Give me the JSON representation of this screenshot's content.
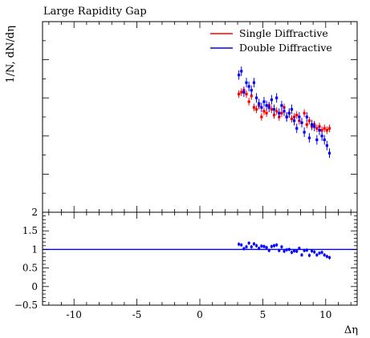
{
  "chart_data": {
    "type": "scatter",
    "title": "Large Rapidity Gap",
    "xlabel": "Δη",
    "ylabel": "1/N, dN/dη",
    "xlim": [
      -12.5,
      12.5
    ],
    "x_ticks": [
      -10,
      -5,
      0,
      5,
      10
    ],
    "x_tick_labels": [
      "-10",
      "-5",
      "0",
      "5",
      "10"
    ],
    "main_y_tick_labels_shown": false,
    "legend_position": "top-right",
    "series": [
      {
        "name": "Single Diffractive",
        "color": "#ff0000",
        "x": [
          3.1,
          3.3,
          3.5,
          3.7,
          3.9,
          4.1,
          4.3,
          4.5,
          4.7,
          4.9,
          5.1,
          5.3,
          5.5,
          5.7,
          5.9,
          6.1,
          6.3,
          6.5,
          6.7,
          6.9,
          7.1,
          7.3,
          7.5,
          7.7,
          7.9,
          8.1,
          8.3,
          8.5,
          8.7,
          8.9,
          9.1,
          9.3,
          9.5,
          9.7,
          9.9,
          10.1,
          10.3
        ],
        "y": [
          0.62,
          0.63,
          0.64,
          0.62,
          0.58,
          0.61,
          0.55,
          0.54,
          0.56,
          0.5,
          0.53,
          0.52,
          0.56,
          0.54,
          0.51,
          0.53,
          0.5,
          0.52,
          0.55,
          0.5,
          0.52,
          0.49,
          0.5,
          0.51,
          0.48,
          0.47,
          0.52,
          0.46,
          0.48,
          0.45,
          0.46,
          0.44,
          0.45,
          0.43,
          0.44,
          0.43,
          0.44
        ],
        "err": [
          0.02,
          0.02,
          0.02,
          0.02,
          0.02,
          0.02,
          0.02,
          0.02,
          0.02,
          0.02,
          0.02,
          0.02,
          0.02,
          0.02,
          0.02,
          0.02,
          0.02,
          0.02,
          0.02,
          0.02,
          0.02,
          0.02,
          0.02,
          0.02,
          0.02,
          0.02,
          0.02,
          0.02,
          0.02,
          0.02,
          0.02,
          0.02,
          0.02,
          0.02,
          0.02,
          0.02,
          0.02
        ]
      },
      {
        "name": "Double Diffractive",
        "color": "#0000ff",
        "x": [
          3.1,
          3.3,
          3.5,
          3.7,
          3.9,
          4.1,
          4.3,
          4.5,
          4.7,
          4.9,
          5.1,
          5.3,
          5.5,
          5.7,
          5.9,
          6.1,
          6.3,
          6.5,
          6.7,
          6.9,
          7.1,
          7.3,
          7.5,
          7.7,
          7.9,
          8.1,
          8.3,
          8.5,
          8.7,
          8.9,
          9.1,
          9.3,
          9.5,
          9.7,
          9.9,
          10.1,
          10.3
        ],
        "y": [
          0.72,
          0.74,
          0.63,
          0.68,
          0.66,
          0.64,
          0.68,
          0.6,
          0.57,
          0.55,
          0.58,
          0.56,
          0.55,
          0.59,
          0.54,
          0.6,
          0.52,
          0.56,
          0.53,
          0.5,
          0.52,
          0.54,
          0.48,
          0.44,
          0.5,
          0.47,
          0.42,
          0.5,
          0.39,
          0.46,
          0.45,
          0.38,
          0.43,
          0.4,
          0.38,
          0.35,
          0.31
        ],
        "err": [
          0.025,
          0.025,
          0.025,
          0.025,
          0.025,
          0.025,
          0.025,
          0.025,
          0.025,
          0.025,
          0.025,
          0.025,
          0.025,
          0.025,
          0.025,
          0.025,
          0.025,
          0.025,
          0.025,
          0.025,
          0.025,
          0.025,
          0.025,
          0.025,
          0.025,
          0.025,
          0.025,
          0.025,
          0.025,
          0.025,
          0.025,
          0.025,
          0.025,
          0.025,
          0.025,
          0.025,
          0.025
        ]
      }
    ],
    "ratio": {
      "ylim": [
        -0.5,
        2
      ],
      "y_ticks": [
        -0.5,
        0,
        0.5,
        1,
        1.5,
        2
      ],
      "y_tick_labels": [
        "−0.5",
        "0",
        "0.5",
        "1",
        "1.5",
        "2"
      ],
      "reference_value": 1,
      "reference_color": "#0000ff",
      "band_color": "#ffff88",
      "points_color": "#0000ff",
      "x": [
        3.1,
        3.3,
        3.5,
        3.7,
        3.9,
        4.1,
        4.3,
        4.5,
        4.7,
        4.9,
        5.1,
        5.3,
        5.5,
        5.7,
        5.9,
        6.1,
        6.3,
        6.5,
        6.7,
        6.9,
        7.1,
        7.3,
        7.5,
        7.7,
        7.9,
        8.1,
        8.3,
        8.5,
        8.7,
        8.9,
        9.1,
        9.3,
        9.5,
        9.7,
        9.9,
        10.1,
        10.3
      ],
      "y": [
        1.14,
        1.12,
        1.02,
        1.07,
        1.17,
        1.07,
        1.15,
        1.1,
        1.03,
        1.09,
        1.08,
        1.05,
        0.97,
        1.08,
        1.1,
        1.12,
        0.97,
        1.07,
        0.95,
        0.99,
        1.0,
        0.92,
        0.96,
        0.95,
        1.03,
        0.85,
        0.97,
        0.98,
        0.84,
        0.96,
        0.93,
        0.85,
        0.9,
        0.92,
        0.85,
        0.81,
        0.78
      ],
      "err": [
        0.05,
        0.05,
        0.05,
        0.05,
        0.05,
        0.05,
        0.05,
        0.05,
        0.05,
        0.05,
        0.05,
        0.05,
        0.05,
        0.05,
        0.05,
        0.05,
        0.05,
        0.05,
        0.05,
        0.05,
        0.05,
        0.05,
        0.05,
        0.05,
        0.05,
        0.05,
        0.05,
        0.05,
        0.05,
        0.05,
        0.05,
        0.05,
        0.05,
        0.05,
        0.05,
        0.05,
        0.05
      ]
    }
  }
}
